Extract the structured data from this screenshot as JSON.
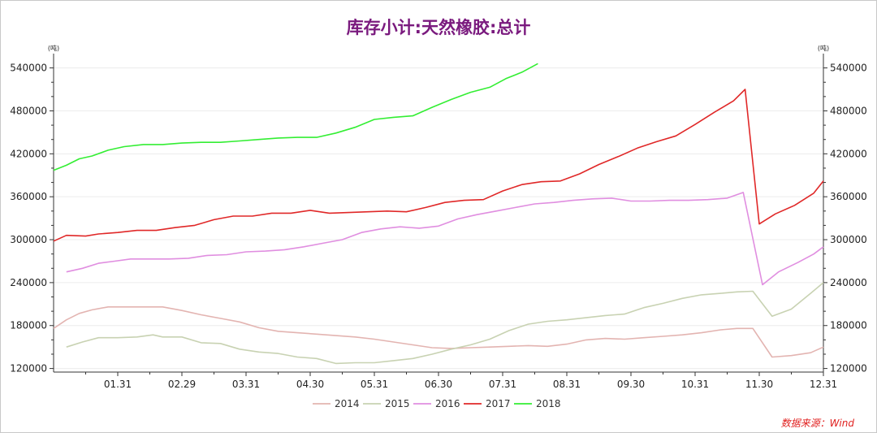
{
  "chart_data": {
    "type": "line",
    "title": "库存小计:天然橡胶:总计",
    "y_unit_left": "(吨)",
    "y_unit_right": "(吨)",
    "xlabel": "",
    "ylabel": "",
    "ylim": [
      115000,
      560000
    ],
    "y_ticks": [
      120000,
      180000,
      240000,
      300000,
      360000,
      420000,
      480000,
      540000
    ],
    "x_tick_labels": [
      "01.31",
      "02.29",
      "03.31",
      "04.30",
      "05.31",
      "06.30",
      "07.31",
      "08.31",
      "09.30",
      "10.31",
      "11.30",
      "12.31"
    ],
    "x_tick_positions": [
      1,
      2,
      3,
      4,
      5,
      6,
      7,
      8,
      9,
      10,
      11,
      12
    ],
    "x_range": [
      0,
      12
    ],
    "legend_position": "bottom-center",
    "grid": true,
    "series": [
      {
        "name": "2014",
        "color": "#e3b4b1",
        "x": [
          0,
          0.2,
          0.4,
          0.6,
          0.85,
          1.1,
          1.4,
          1.7,
          2.0,
          2.3,
          2.6,
          2.9,
          3.2,
          3.5,
          3.8,
          4.1,
          4.4,
          4.7,
          5.0,
          5.3,
          5.6,
          5.9,
          6.2,
          6.5,
          6.8,
          7.1,
          7.4,
          7.7,
          8.0,
          8.3,
          8.6,
          8.9,
          9.2,
          9.5,
          9.8,
          10.1,
          10.4,
          10.65,
          10.9,
          11.2,
          11.5,
          11.8,
          12.0
        ],
        "values": [
          176000,
          188000,
          197000,
          202000,
          206000,
          206000,
          206000,
          206000,
          201000,
          195000,
          190000,
          185000,
          177000,
          172000,
          170000,
          168000,
          166000,
          164000,
          161000,
          157000,
          153000,
          149000,
          148000,
          149000,
          150000,
          151000,
          152000,
          151000,
          154000,
          160000,
          162000,
          161000,
          163000,
          165000,
          167000,
          170000,
          174000,
          176000,
          176000,
          136000,
          138000,
          142000,
          150000
        ]
      },
      {
        "name": "2015",
        "color": "#c8d2b2",
        "x": [
          0.2,
          0.45,
          0.7,
          1.0,
          1.3,
          1.55,
          1.7,
          2.0,
          2.3,
          2.6,
          2.9,
          3.2,
          3.5,
          3.8,
          4.1,
          4.4,
          4.7,
          5.0,
          5.3,
          5.6,
          5.9,
          6.2,
          6.5,
          6.8,
          7.1,
          7.4,
          7.7,
          8.0,
          8.3,
          8.6,
          8.75,
          8.9,
          9.2,
          9.5,
          9.8,
          10.1,
          10.4,
          10.65,
          10.9,
          11.2,
          11.5,
          11.8,
          12.0
        ],
        "values": [
          150000,
          157000,
          163000,
          163000,
          164000,
          167000,
          164000,
          164000,
          156000,
          155000,
          147000,
          143000,
          141000,
          136000,
          134000,
          127000,
          128000,
          128000,
          131000,
          134000,
          140000,
          147000,
          153000,
          161000,
          173000,
          182000,
          186000,
          188000,
          191000,
          194000,
          195000,
          196000,
          205000,
          211000,
          218000,
          223000,
          225000,
          227000,
          228000,
          193000,
          203000,
          225000,
          240000
        ]
      },
      {
        "name": "2016",
        "color": "#e08ee0",
        "x": [
          0.2,
          0.45,
          0.7,
          0.95,
          1.2,
          1.5,
          1.8,
          2.1,
          2.4,
          2.7,
          3.0,
          3.3,
          3.6,
          3.9,
          4.2,
          4.5,
          4.8,
          5.1,
          5.4,
          5.7,
          6.0,
          6.3,
          6.6,
          6.9,
          7.2,
          7.5,
          7.8,
          8.1,
          8.4,
          8.7,
          9.0,
          9.3,
          9.6,
          9.9,
          10.2,
          10.5,
          10.75,
          11.05,
          11.3,
          11.6,
          11.85,
          12.0
        ],
        "values": [
          255000,
          260000,
          267000,
          270000,
          273000,
          273000,
          273000,
          274000,
          278000,
          279000,
          283000,
          284000,
          286000,
          290000,
          295000,
          300000,
          310000,
          315000,
          318000,
          316000,
          319000,
          329000,
          335000,
          340000,
          345000,
          350000,
          352000,
          355000,
          357000,
          358000,
          354000,
          354000,
          355000,
          355000,
          356000,
          358000,
          366000,
          237000,
          255000,
          268000,
          280000,
          290000
        ]
      },
      {
        "name": "2017",
        "color": "#e02828",
        "x": [
          0,
          0.2,
          0.5,
          0.7,
          1.0,
          1.3,
          1.6,
          1.9,
          2.2,
          2.5,
          2.8,
          3.1,
          3.4,
          3.7,
          4.0,
          4.3,
          4.6,
          4.9,
          5.2,
          5.5,
          5.8,
          6.1,
          6.4,
          6.7,
          7.0,
          7.3,
          7.6,
          7.9,
          8.2,
          8.5,
          8.8,
          9.1,
          9.4,
          9.7,
          10.0,
          10.3,
          10.6,
          10.78,
          11.0,
          11.25,
          11.55,
          11.85,
          12.0
        ],
        "values": [
          298000,
          306000,
          305000,
          308000,
          310000,
          313000,
          313000,
          317000,
          320000,
          328000,
          333000,
          333000,
          337000,
          337000,
          341000,
          337000,
          338000,
          339000,
          340000,
          339000,
          345000,
          352000,
          355000,
          356000,
          368000,
          377000,
          381000,
          382000,
          392000,
          405000,
          416000,
          428000,
          437000,
          445000,
          461000,
          478000,
          494000,
          510000,
          322000,
          336000,
          348000,
          365000,
          382000
        ]
      },
      {
        "name": "2018",
        "color": "#33ee33",
        "x": [
          0,
          0.2,
          0.4,
          0.6,
          0.85,
          1.1,
          1.4,
          1.7,
          2.0,
          2.3,
          2.6,
          2.9,
          3.2,
          3.5,
          3.8,
          4.1,
          4.4,
          4.7,
          5.0,
          5.3,
          5.6,
          5.9,
          6.2,
          6.5,
          6.8,
          7.05,
          7.3,
          7.55
        ],
        "values": [
          397000,
          404000,
          413000,
          417000,
          425000,
          430000,
          433000,
          433000,
          435000,
          436000,
          436000,
          438000,
          440000,
          442000,
          443000,
          443000,
          449000,
          457000,
          468000,
          471000,
          473000,
          485000,
          496000,
          506000,
          513000,
          525000,
          534000,
          546000
        ]
      }
    ]
  },
  "source_note": "数据来源：Wind"
}
